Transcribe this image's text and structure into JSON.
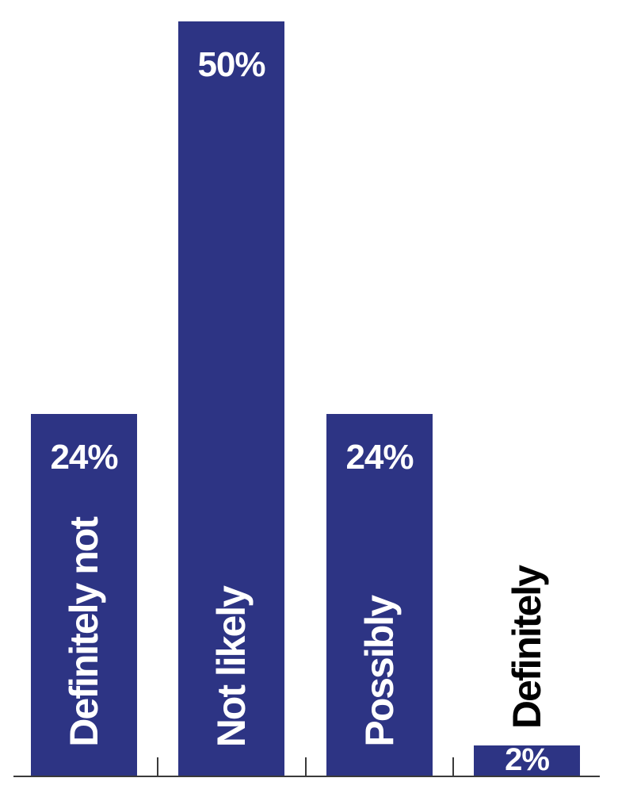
{
  "chart_data": {
    "type": "bar",
    "orientation": "vertical",
    "title": "",
    "xlabel": "",
    "ylabel": "",
    "categories": [
      "Definitely not",
      "Not likely",
      "Possibly",
      "Definitely"
    ],
    "values": [
      24,
      50,
      24,
      2
    ],
    "value_labels": [
      "24%",
      "50%",
      "24%",
      "2%"
    ],
    "ylim": [
      0,
      50
    ],
    "grid": false,
    "legend": false,
    "style": {
      "bar_color": "#2d3484",
      "value_label_color": "#ffffff",
      "category_label_colors": [
        "#ffffff",
        "#ffffff",
        "#ffffff",
        "#000000"
      ],
      "category_label_placement": [
        "inside-bottom",
        "inside-bottom",
        "inside-bottom",
        "above-bar"
      ],
      "axis_color": "#3a3a3a",
      "background": "#ffffff"
    }
  }
}
